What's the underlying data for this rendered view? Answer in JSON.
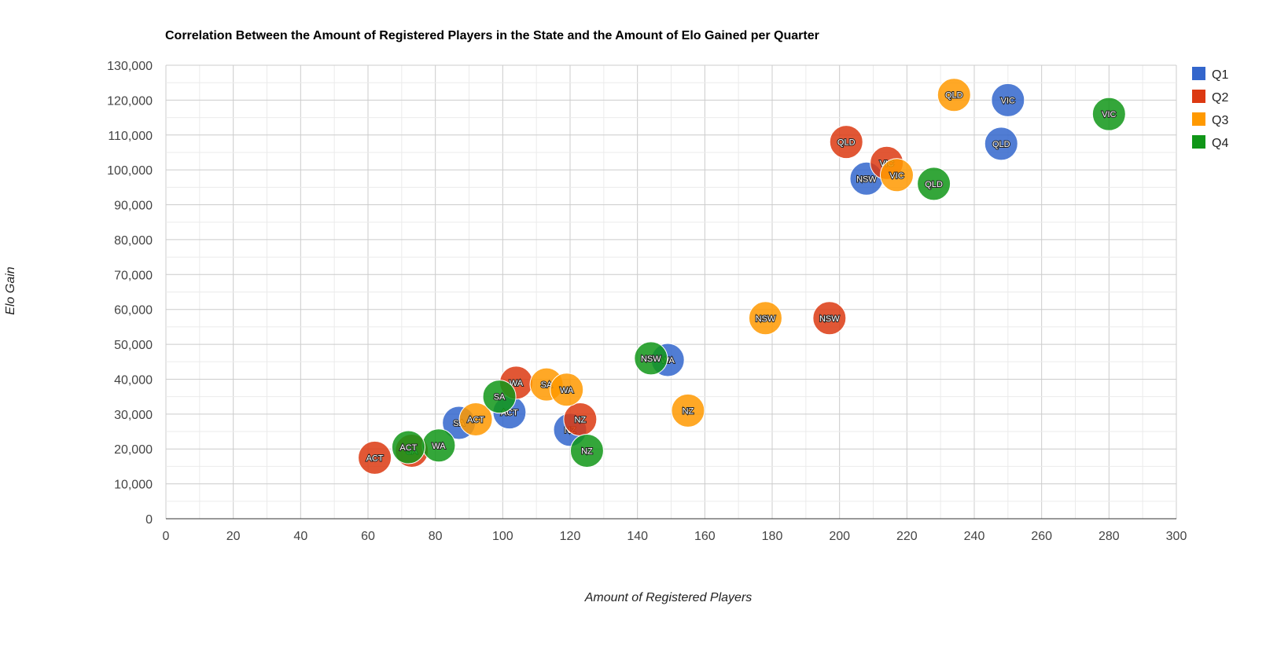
{
  "chart_data": {
    "type": "scatter",
    "subtype": "bubble",
    "title": "Correlation Between the Amount of Registered Players in the State and the Amount of Elo Gained per Quarter",
    "xlabel": "Amount of Registered Players",
    "ylabel": "Elo Gain",
    "xlim": [
      0,
      300
    ],
    "ylim": [
      0,
      130000
    ],
    "x_ticks": [
      "0",
      "20",
      "40",
      "60",
      "80",
      "100",
      "120",
      "140",
      "160",
      "180",
      "200",
      "220",
      "240",
      "260",
      "280",
      "300"
    ],
    "y_ticks": [
      "0",
      "10,000",
      "20,000",
      "30,000",
      "40,000",
      "50,000",
      "60,000",
      "70,000",
      "80,000",
      "90,000",
      "100,000",
      "110,000",
      "120,000",
      "130,000"
    ],
    "grid": true,
    "legend_position": "right",
    "series": [
      {
        "name": "Q1",
        "color": "#3366cc",
        "points": [
          {
            "label": "VIC",
            "x": 250,
            "y": 120000
          },
          {
            "label": "QLD",
            "x": 248,
            "y": 107500
          },
          {
            "label": "NSW",
            "x": 208,
            "y": 97500
          },
          {
            "label": "WA",
            "x": 149,
            "y": 45500
          },
          {
            "label": "ACT",
            "x": 102,
            "y": 30500
          },
          {
            "label": "SA",
            "x": 87,
            "y": 27500
          },
          {
            "label": "NZ",
            "x": 120,
            "y": 25500
          }
        ]
      },
      {
        "name": "Q2",
        "color": "#dc3912",
        "points": [
          {
            "label": "QLD",
            "x": 202,
            "y": 108000
          },
          {
            "label": "VIC",
            "x": 214,
            "y": 102000
          },
          {
            "label": "NSW",
            "x": 197,
            "y": 57500
          },
          {
            "label": "WA",
            "x": 104,
            "y": 39000
          },
          {
            "label": "NZ",
            "x": 123,
            "y": 28500
          },
          {
            "label": "ACT",
            "x": 62,
            "y": 17500
          },
          {
            "label": "SA",
            "x": 73,
            "y": 19500
          }
        ]
      },
      {
        "name": "Q3",
        "color": "#ff9900",
        "points": [
          {
            "label": "QLD",
            "x": 234,
            "y": 121500
          },
          {
            "label": "VIC",
            "x": 217,
            "y": 98500
          },
          {
            "label": "NSW",
            "x": 178,
            "y": 57500
          },
          {
            "label": "SA",
            "x": 113,
            "y": 38500
          },
          {
            "label": "WA",
            "x": 119,
            "y": 37000
          },
          {
            "label": "NZ",
            "x": 155,
            "y": 31000
          },
          {
            "label": "ACT",
            "x": 92,
            "y": 28500
          }
        ]
      },
      {
        "name": "Q4",
        "color": "#109618",
        "points": [
          {
            "label": "VIC",
            "x": 280,
            "y": 116000
          },
          {
            "label": "QLD",
            "x": 228,
            "y": 96000
          },
          {
            "label": "NSW",
            "x": 144,
            "y": 46000
          },
          {
            "label": "SA",
            "x": 99,
            "y": 35000
          },
          {
            "label": "WA",
            "x": 81,
            "y": 21000
          },
          {
            "label": "ACT",
            "x": 72,
            "y": 20500
          },
          {
            "label": "NZ",
            "x": 125,
            "y": 19500
          }
        ]
      }
    ]
  }
}
